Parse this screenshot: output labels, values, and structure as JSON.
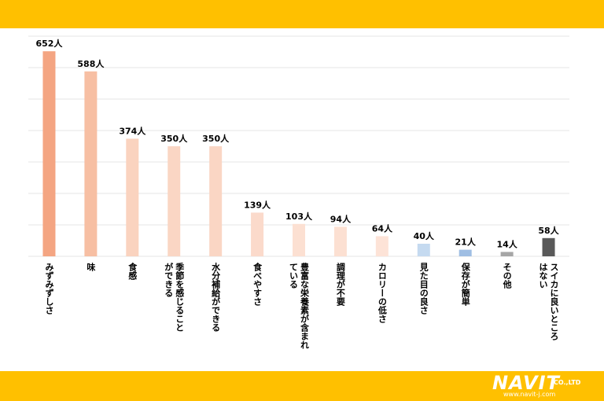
{
  "chart_data": {
    "type": "bar",
    "categories": [
      "みずみずしさ",
      "味",
      "食感",
      "季節を感じることができる",
      "水分補給ができる",
      "食べやすさ",
      "豊富な栄養素が含まれている",
      "調理が不要",
      "カロリーの低さ",
      "見た目の良さ",
      "保存が簡単",
      "その他",
      "スイカに良いところはない"
    ],
    "category_lines": [
      [
        "みずみずしさ"
      ],
      [
        "味"
      ],
      [
        "食感"
      ],
      [
        "季節を感じること",
        "ができる"
      ],
      [
        "水分補給ができる"
      ],
      [
        "食べやすさ"
      ],
      [
        "豊富な栄養素が含まれ",
        "ている"
      ],
      [
        "調理が不要"
      ],
      [
        "カロリーの低さ"
      ],
      [
        "見た目の良さ"
      ],
      [
        "保存が簡単"
      ],
      [
        "その他"
      ],
      [
        "スイカに良いところ",
        "はない"
      ]
    ],
    "values": [
      652,
      588,
      374,
      350,
      350,
      139,
      103,
      94,
      64,
      40,
      21,
      14,
      58
    ],
    "data_labels": [
      "652人",
      "588人",
      "374人",
      "350人",
      "350人",
      "139人",
      "103人",
      "94人",
      "64人",
      "40人",
      "21人",
      "14人",
      "58人"
    ],
    "bar_colors": [
      "#F4A582",
      "#F7BFA3",
      "#FAD3BF",
      "#FAD6C4",
      "#FAD6C4",
      "#FBDACB",
      "#FCE0D2",
      "#FCE0D2",
      "#FDE3D7",
      "#C5DAF0",
      "#9FBEE3",
      "#A6A6A6",
      "#595959"
    ],
    "ylim": [
      0,
      700
    ],
    "grid": true,
    "legend": "none"
  },
  "logo": {
    "word": "NAVIT",
    "company": "CO.,LTD",
    "url": "www.navit-j.com"
  },
  "colors": {
    "band": "#FFC000",
    "grid": "#E5E5E5",
    "text": "#000000"
  }
}
